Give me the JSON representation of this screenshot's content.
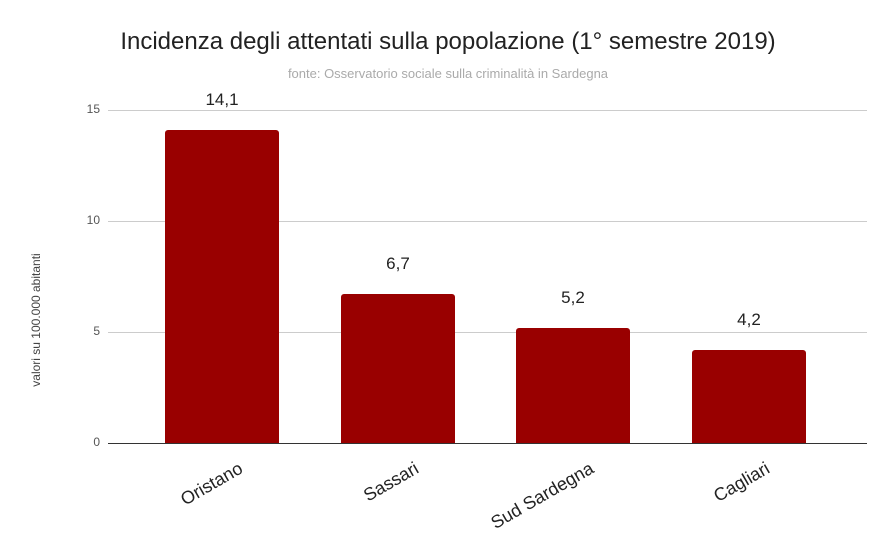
{
  "chart_data": {
    "type": "bar",
    "title": "Incidenza degli attentati sulla popolazione (1° semestre  2019)",
    "subtitle": "fonte: Osservatorio sociale sulla criminalità in Sardegna",
    "xlabel": "",
    "ylabel": "valori su 100.000 abitanti",
    "categories": [
      "Oristano",
      "Sassari",
      "Sud Sardegna",
      "Cagliari"
    ],
    "values": [
      14.1,
      6.7,
      5.2,
      4.2
    ],
    "value_labels": [
      "14,1",
      "6,7",
      "5,2",
      "4,2"
    ],
    "ylim": [
      0,
      15
    ],
    "yticks": [
      "0",
      "5",
      "10",
      "15"
    ],
    "grid": true,
    "legend": "none",
    "bar_color": "#990000"
  }
}
